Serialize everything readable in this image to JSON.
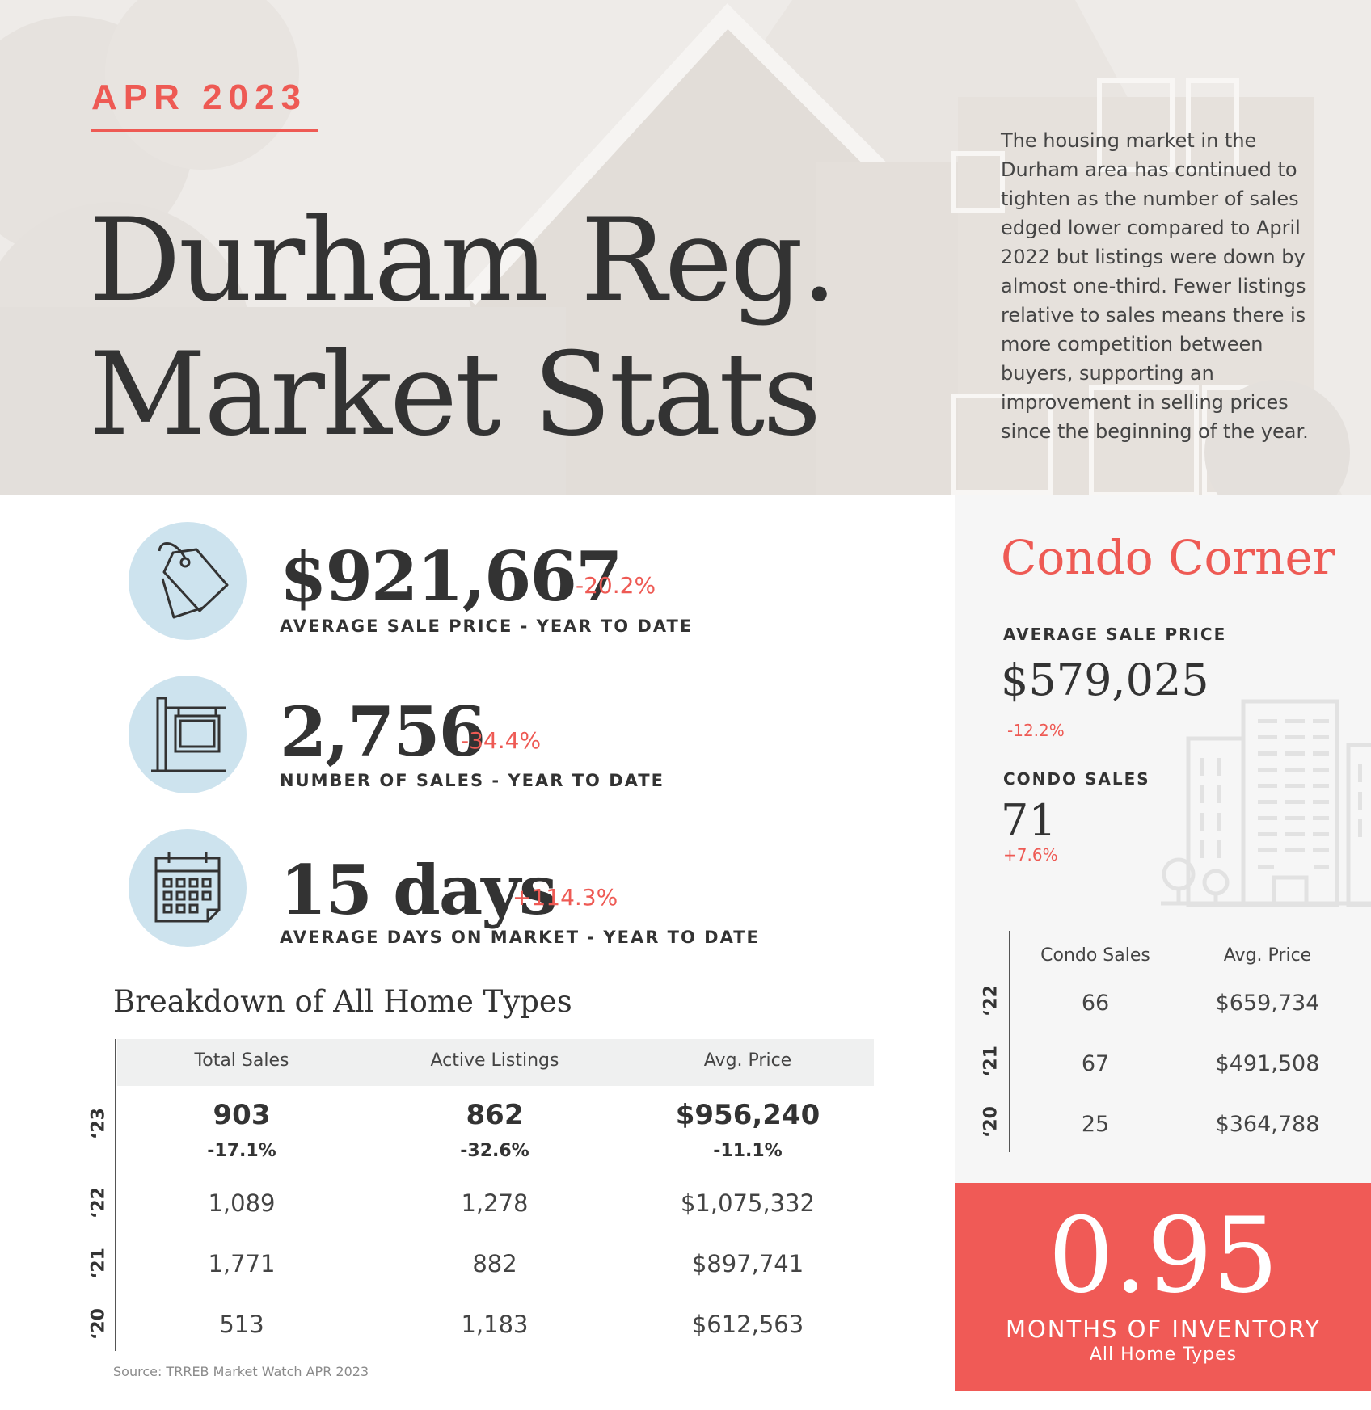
{
  "header": {
    "month": "APR 2023",
    "title_line1": "Durham Reg.",
    "title_line2": "Market Stats",
    "intro": "The housing market in the Durham area has continued to tighten as the number of sales edged lower compared to April 2022 but listings were down by almost one-third. Fewer listings relative to sales means there is more competition between buyers, supporting an improvement in selling prices since the beginning of the year."
  },
  "stats": [
    {
      "icon": "price-tag-icon",
      "value": "$921,667",
      "change": "-20.2%",
      "label": "AVERAGE SALE PRICE - YEAR TO DATE"
    },
    {
      "icon": "sale-sign-icon",
      "value": "2,756",
      "change": "-34.4%",
      "label": "NUMBER OF SALES - YEAR TO DATE"
    },
    {
      "icon": "calendar-icon",
      "value": "15 days",
      "change": "+114.3%",
      "label": "AVERAGE DAYS ON MARKET - YEAR TO DATE"
    }
  ],
  "breakdown": {
    "title": "Breakdown of All Home Types",
    "columns": [
      "Total Sales",
      "Active Listings",
      "Avg. Price"
    ],
    "rows": [
      {
        "year": "‘23",
        "values": [
          "903",
          "862",
          "$956,240"
        ],
        "changes": [
          "-17.1%",
          "-32.6%",
          "-11.1%"
        ]
      },
      {
        "year": "‘22",
        "values": [
          "1,089",
          "1,278",
          "$1,075,332"
        ]
      },
      {
        "year": "‘21",
        "values": [
          "1,771",
          "882",
          "$897,741"
        ]
      },
      {
        "year": "‘20",
        "values": [
          "513",
          "1,183",
          "$612,563"
        ]
      }
    ],
    "source": "Source: TRREB Market Watch APR 2023"
  },
  "condo": {
    "title": "Condo Corner",
    "avg_price_label": "AVERAGE SALE PRICE",
    "avg_price_value": "$579,025",
    "avg_price_change": "-12.2%",
    "sales_label": "CONDO SALES",
    "sales_value": "71",
    "sales_change": "+7.6%",
    "columns": [
      "Condo Sales",
      "Avg. Price"
    ],
    "rows": [
      {
        "year": "‘22",
        "values": [
          "66",
          "$659,734"
        ]
      },
      {
        "year": "‘21",
        "values": [
          "67",
          "$491,508"
        ]
      },
      {
        "year": "‘20",
        "values": [
          "25",
          "$364,788"
        ]
      }
    ]
  },
  "inventory": {
    "value": "0.95",
    "label": "MONTHS OF INVENTORY",
    "sublabel": "All Home Types"
  },
  "colors": {
    "accent": "#ee5a54",
    "icon_circle": "#cde3ee",
    "text": "#333333"
  }
}
